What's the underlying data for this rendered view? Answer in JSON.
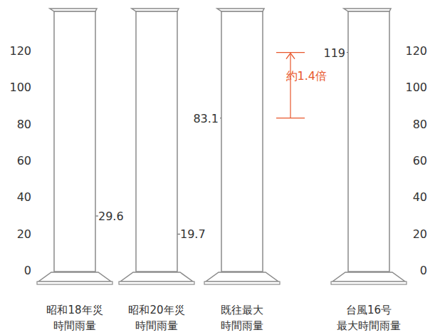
{
  "chart_data": {
    "type": "bar",
    "categories": [
      "昭和18年災\n時間雨量",
      "昭和20年災\n時間雨量",
      "既往最大\n時間雨量",
      "台風16号\n最大時間雨量"
    ],
    "values": [
      29.6,
      19.7,
      83.1,
      119
    ],
    "colors": [
      "#a9b1df",
      "#a9b1df",
      "#f7c51a",
      "#e01b2a"
    ],
    "ylim": [
      0,
      120
    ],
    "yticks": [
      0,
      20,
      40,
      60,
      80,
      100,
      120
    ],
    "data_labels": true,
    "grid": false,
    "annotations": [
      {
        "text": "約1.4倍",
        "color": "#e8572c"
      }
    ]
  }
}
